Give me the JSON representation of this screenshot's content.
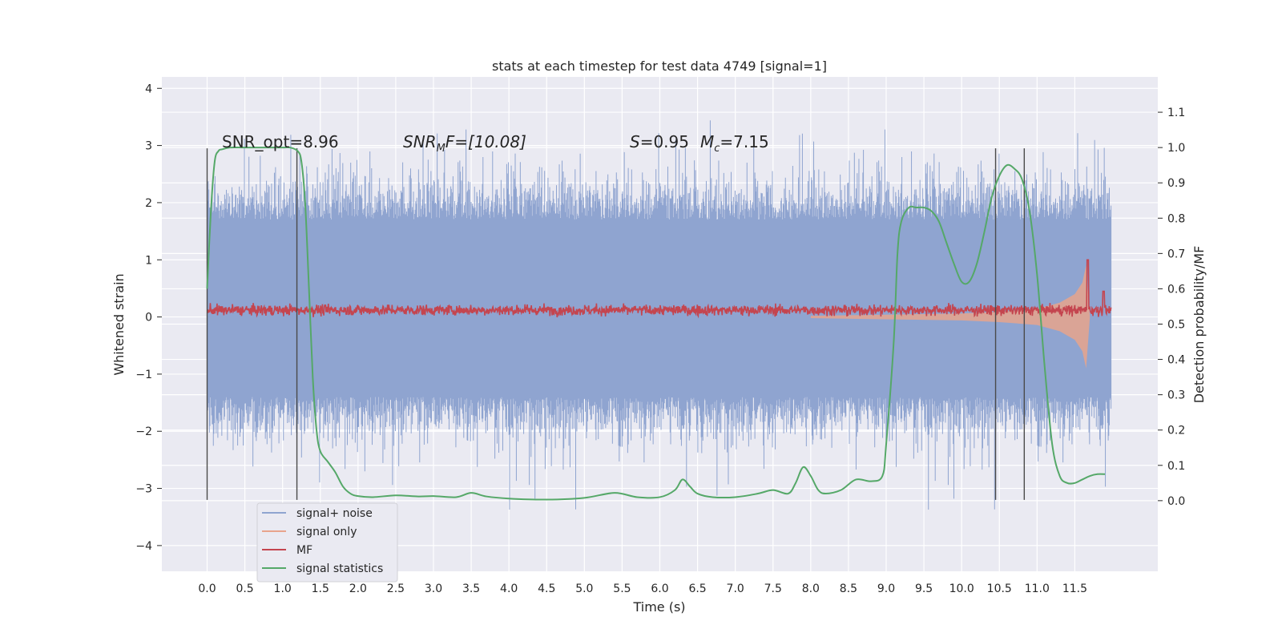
{
  "chart_data": {
    "type": "line",
    "title": "stats at each timestep for test data 4749 [signal=1]",
    "xlabel": "Time (s)",
    "ylabel": "Whitened strain",
    "y2label": "Detection probability/MF",
    "xlim": [
      -0.6,
      12.6
    ],
    "ylim": [
      -4.45,
      4.2
    ],
    "y2lim": [
      -0.2,
      1.2
    ],
    "x_ticks": [
      "0.0",
      "0.5",
      "1.0",
      "1.5",
      "2.0",
      "2.5",
      "3.0",
      "3.5",
      "4.0",
      "4.5",
      "5.0",
      "5.5",
      "6.0",
      "6.5",
      "7.0",
      "7.5",
      "8.0",
      "8.5",
      "9.0",
      "9.5",
      "10.0",
      "10.5",
      "11.0",
      "11.5"
    ],
    "y_ticks": [
      "4",
      "3",
      "2",
      "1",
      "0",
      "−1",
      "−2",
      "−3",
      "−4"
    ],
    "y2_ticks": [
      "1.1",
      "1.0",
      "0.9",
      "0.8",
      "0.7",
      "0.6",
      "0.5",
      "0.4",
      "0.3",
      "0.2",
      "0.1",
      "0.0"
    ],
    "grid": true,
    "background": "#eaeaf2",
    "annotations": {
      "snr_opt": "SNR_opt=8.96",
      "snr_mf_main": "SNR",
      "snr_mf_sub": "M",
      "snr_mf_rest": "F=[10.08]",
      "s_label": "S",
      "s_value": "=0.95",
      "mc_label": "M",
      "mc_sub": "c",
      "mc_value": "=7.15"
    },
    "vertical_markers": [
      0.0,
      1.19,
      10.45,
      10.83
    ],
    "legend": {
      "placement": "lower-left",
      "entries": [
        {
          "label": "signal+ noise",
          "color": "#8fa4d0"
        },
        {
          "label": "signal only",
          "color": "#e8a48c"
        },
        {
          "label": "MF",
          "color": "#c4454f"
        },
        {
          "label": "signal statistics",
          "color": "#55a868"
        }
      ]
    },
    "series": [
      {
        "name": "signal+ noise",
        "color": "#8fa4d0",
        "description_range": [
          -3.4,
          3.6
        ],
        "x_range": [
          0.0,
          11.98
        ],
        "band_inner": [
          -1.4,
          1.7
        ]
      },
      {
        "name": "signal only",
        "color": "#e8a48c",
        "x": [
          8.0,
          9.0,
          10.0,
          10.5,
          11.0,
          11.3,
          11.5,
          11.6,
          11.65,
          11.7
        ],
        "envelope": [
          0.02,
          0.04,
          0.06,
          0.09,
          0.14,
          0.25,
          0.4,
          0.6,
          0.9,
          0.0
        ]
      },
      {
        "name": "MF",
        "color": "#c4454f",
        "x_range": [
          0.0,
          11.98
        ],
        "base": 0.12,
        "amplitude": 0.13,
        "spikes": [
          {
            "x": 11.67,
            "y": 1.0
          },
          {
            "x": 11.88,
            "y": 0.45
          }
        ]
      },
      {
        "name": "signal statistics",
        "color": "#55a868",
        "axis": "y2",
        "x": [
          0.0,
          0.05,
          0.1,
          0.15,
          0.2,
          0.3,
          0.5,
          0.8,
          1.0,
          1.1,
          1.2,
          1.25,
          1.3,
          1.35,
          1.4,
          1.45,
          1.5,
          1.6,
          1.7,
          1.8,
          1.9,
          2.0,
          2.2,
          2.5,
          2.8,
          3.0,
          3.3,
          3.5,
          3.7,
          4.0,
          4.5,
          5.0,
          5.4,
          5.7,
          6.0,
          6.2,
          6.3,
          6.4,
          6.5,
          6.7,
          7.0,
          7.3,
          7.5,
          7.7,
          7.8,
          7.9,
          8.0,
          8.1,
          8.2,
          8.4,
          8.6,
          8.8,
          8.95,
          9.0,
          9.1,
          9.15,
          9.2,
          9.3,
          9.4,
          9.5,
          9.6,
          9.7,
          9.8,
          9.9,
          10.0,
          10.1,
          10.2,
          10.3,
          10.4,
          10.5,
          10.6,
          10.7,
          10.8,
          10.9,
          11.0,
          11.1,
          11.2,
          11.3,
          11.4,
          11.5,
          11.6,
          11.7,
          11.8,
          11.9
        ],
        "y": [
          0.6,
          0.82,
          0.96,
          0.99,
          0.995,
          1.0,
          1.0,
          1.0,
          1.0,
          1.0,
          0.99,
          0.96,
          0.84,
          0.6,
          0.35,
          0.2,
          0.14,
          0.11,
          0.08,
          0.04,
          0.02,
          0.013,
          0.01,
          0.015,
          0.012,
          0.013,
          0.01,
          0.022,
          0.012,
          0.006,
          0.003,
          0.008,
          0.022,
          0.01,
          0.01,
          0.03,
          0.06,
          0.04,
          0.02,
          0.01,
          0.01,
          0.02,
          0.03,
          0.02,
          0.05,
          0.095,
          0.07,
          0.03,
          0.02,
          0.03,
          0.06,
          0.055,
          0.07,
          0.16,
          0.45,
          0.7,
          0.79,
          0.83,
          0.83,
          0.83,
          0.82,
          0.79,
          0.73,
          0.67,
          0.62,
          0.62,
          0.67,
          0.76,
          0.86,
          0.92,
          0.95,
          0.94,
          0.91,
          0.82,
          0.64,
          0.38,
          0.16,
          0.07,
          0.05,
          0.05,
          0.06,
          0.07,
          0.075,
          0.075
        ]
      }
    ]
  }
}
